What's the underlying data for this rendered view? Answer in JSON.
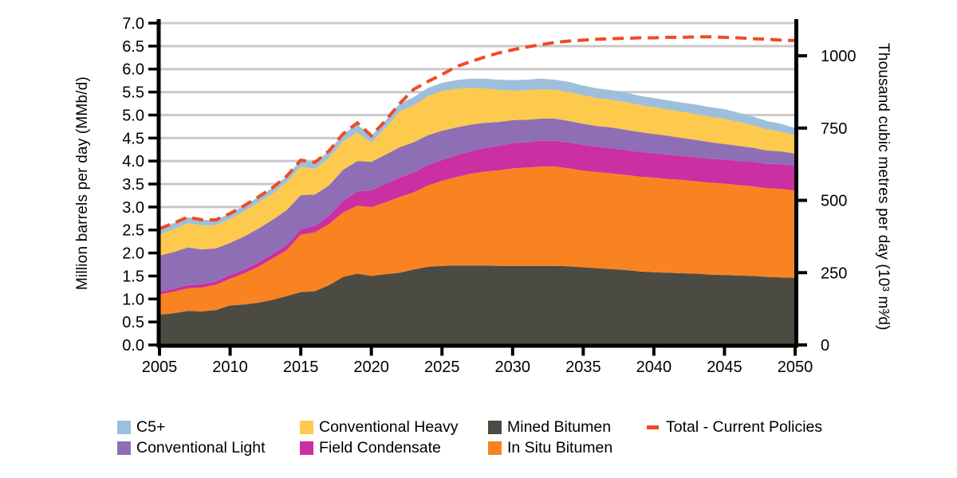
{
  "page": {
    "background": "#FFFFFF"
  },
  "axes": {
    "left": {
      "title": "Million barrels per day (MMb/d)",
      "tick_labels": [
        "0.0",
        "0.5",
        "1.0",
        "1.5",
        "2.0",
        "2.5",
        "3.0",
        "3.5",
        "4.0",
        "4.5",
        "5.0",
        "5.5",
        "6.0",
        "6.5",
        "7.0"
      ],
      "range": [
        0,
        7
      ]
    },
    "bottom": {
      "tick_labels": [
        "2005",
        "2010",
        "2015",
        "2020",
        "2025",
        "2030",
        "2035",
        "2040",
        "2045",
        "2050"
      ],
      "range": [
        2005,
        2050
      ]
    },
    "right": {
      "title": "Thousand cubic metres per day (10³ m³⁄d)",
      "tick_labels": [
        "0",
        "250",
        "500",
        "750",
        "1000"
      ],
      "tick_values": [
        0,
        250,
        500,
        750,
        1000
      ],
      "range": [
        0,
        1113
      ]
    }
  },
  "legend": {
    "items": [
      {
        "label": "C5+",
        "color": "#9DBFDC",
        "type": "swatch"
      },
      {
        "label": "Conventional Light",
        "color": "#8E6FB5",
        "type": "swatch"
      },
      {
        "label": "Conventional Heavy",
        "color": "#FDCA4D",
        "type": "swatch"
      },
      {
        "label": "Field Condensate",
        "color": "#CB2FA2",
        "type": "swatch"
      },
      {
        "label": "Mined Bitumen",
        "color": "#4C4B43",
        "type": "swatch"
      },
      {
        "label": "In Situ Bitumen",
        "color": "#F98321",
        "type": "swatch"
      },
      {
        "label": "Total - Current Policies",
        "color": "#EE4C25",
        "type": "dash"
      }
    ]
  },
  "chart_data": {
    "type": "area",
    "stacked": true,
    "grid": "horizontal",
    "grid_color": "#C9C9C9",
    "axis_color": "#000000",
    "ylim_left": [
      0,
      7
    ],
    "ylim_right": [
      0,
      1113
    ],
    "x": [
      2005,
      2006,
      2007,
      2008,
      2009,
      2010,
      2011,
      2012,
      2013,
      2014,
      2015,
      2016,
      2017,
      2018,
      2019,
      2020,
      2021,
      2022,
      2023,
      2024,
      2025,
      2026,
      2027,
      2028,
      2029,
      2030,
      2031,
      2032,
      2033,
      2034,
      2035,
      2036,
      2037,
      2038,
      2039,
      2040,
      2041,
      2042,
      2043,
      2044,
      2045,
      2046,
      2047,
      2048,
      2049,
      2050
    ],
    "series": [
      {
        "name": "Mined Bitumen",
        "color": "#4C4B43",
        "values": [
          0.66,
          0.69,
          0.74,
          0.73,
          0.76,
          0.86,
          0.88,
          0.92,
          0.98,
          1.06,
          1.15,
          1.17,
          1.3,
          1.48,
          1.55,
          1.5,
          1.54,
          1.57,
          1.64,
          1.7,
          1.72,
          1.73,
          1.73,
          1.73,
          1.72,
          1.72,
          1.72,
          1.72,
          1.72,
          1.71,
          1.69,
          1.67,
          1.65,
          1.63,
          1.6,
          1.58,
          1.57,
          1.56,
          1.55,
          1.53,
          1.52,
          1.51,
          1.5,
          1.48,
          1.47,
          1.46
        ]
      },
      {
        "name": "In Situ Bitumen",
        "color": "#F98321",
        "values": [
          0.44,
          0.47,
          0.49,
          0.52,
          0.55,
          0.58,
          0.68,
          0.78,
          0.9,
          1.0,
          1.25,
          1.28,
          1.33,
          1.4,
          1.48,
          1.5,
          1.56,
          1.65,
          1.68,
          1.77,
          1.85,
          1.92,
          1.99,
          2.04,
          2.08,
          2.12,
          2.14,
          2.16,
          2.16,
          2.13,
          2.1,
          2.09,
          2.08,
          2.07,
          2.06,
          2.06,
          2.04,
          2.03,
          2.01,
          2.0,
          1.99,
          1.97,
          1.95,
          1.93,
          1.92,
          1.9
        ]
      },
      {
        "name": "Field Condensate",
        "color": "#CB2FA2",
        "values": [
          0.06,
          0.06,
          0.07,
          0.07,
          0.07,
          0.08,
          0.08,
          0.09,
          0.1,
          0.11,
          0.12,
          0.14,
          0.18,
          0.25,
          0.31,
          0.36,
          0.4,
          0.42,
          0.43,
          0.44,
          0.45,
          0.47,
          0.49,
          0.51,
          0.53,
          0.55,
          0.55,
          0.56,
          0.56,
          0.56,
          0.56,
          0.55,
          0.55,
          0.54,
          0.54,
          0.53,
          0.53,
          0.52,
          0.52,
          0.52,
          0.52,
          0.52,
          0.53,
          0.53,
          0.54,
          0.54
        ]
      },
      {
        "name": "Conventional Light",
        "color": "#8E6FB5",
        "values": [
          0.78,
          0.8,
          0.82,
          0.76,
          0.72,
          0.7,
          0.72,
          0.74,
          0.74,
          0.76,
          0.74,
          0.68,
          0.66,
          0.68,
          0.66,
          0.62,
          0.64,
          0.66,
          0.66,
          0.65,
          0.64,
          0.61,
          0.58,
          0.55,
          0.52,
          0.5,
          0.49,
          0.48,
          0.48,
          0.47,
          0.46,
          0.45,
          0.45,
          0.44,
          0.43,
          0.42,
          0.41,
          0.39,
          0.38,
          0.36,
          0.34,
          0.33,
          0.31,
          0.29,
          0.28,
          0.26
        ]
      },
      {
        "name": "Conventional Heavy",
        "color": "#FDCA4D",
        "values": [
          0.46,
          0.5,
          0.53,
          0.52,
          0.5,
          0.52,
          0.55,
          0.57,
          0.57,
          0.61,
          0.62,
          0.56,
          0.6,
          0.62,
          0.62,
          0.42,
          0.58,
          0.78,
          0.8,
          0.85,
          0.86,
          0.84,
          0.8,
          0.75,
          0.7,
          0.64,
          0.64,
          0.64,
          0.63,
          0.63,
          0.62,
          0.61,
          0.6,
          0.6,
          0.59,
          0.58,
          0.57,
          0.57,
          0.56,
          0.55,
          0.55,
          0.52,
          0.49,
          0.46,
          0.43,
          0.4
        ]
      },
      {
        "name": "C5+",
        "color": "#9DBFDC",
        "values": [
          0.13,
          0.13,
          0.13,
          0.12,
          0.12,
          0.12,
          0.12,
          0.12,
          0.13,
          0.13,
          0.14,
          0.14,
          0.15,
          0.16,
          0.17,
          0.15,
          0.16,
          0.17,
          0.18,
          0.18,
          0.18,
          0.19,
          0.2,
          0.21,
          0.22,
          0.23,
          0.23,
          0.23,
          0.22,
          0.22,
          0.21,
          0.21,
          0.21,
          0.21,
          0.2,
          0.2,
          0.2,
          0.2,
          0.21,
          0.21,
          0.21,
          0.2,
          0.19,
          0.18,
          0.17,
          0.16
        ]
      }
    ],
    "line": {
      "name": "Total - Current Policies",
      "color": "#EE4C25",
      "style": "dashed",
      "values": [
        2.53,
        2.65,
        2.78,
        2.72,
        2.72,
        2.86,
        3.03,
        3.22,
        3.42,
        3.67,
        4.02,
        3.97,
        4.22,
        4.59,
        4.83,
        4.55,
        4.88,
        5.25,
        5.56,
        5.73,
        5.88,
        6.05,
        6.16,
        6.26,
        6.35,
        6.42,
        6.48,
        6.53,
        6.58,
        6.61,
        6.63,
        6.65,
        6.66,
        6.67,
        6.68,
        6.68,
        6.69,
        6.69,
        6.7,
        6.7,
        6.69,
        6.68,
        6.66,
        6.65,
        6.63,
        6.62
      ]
    }
  }
}
